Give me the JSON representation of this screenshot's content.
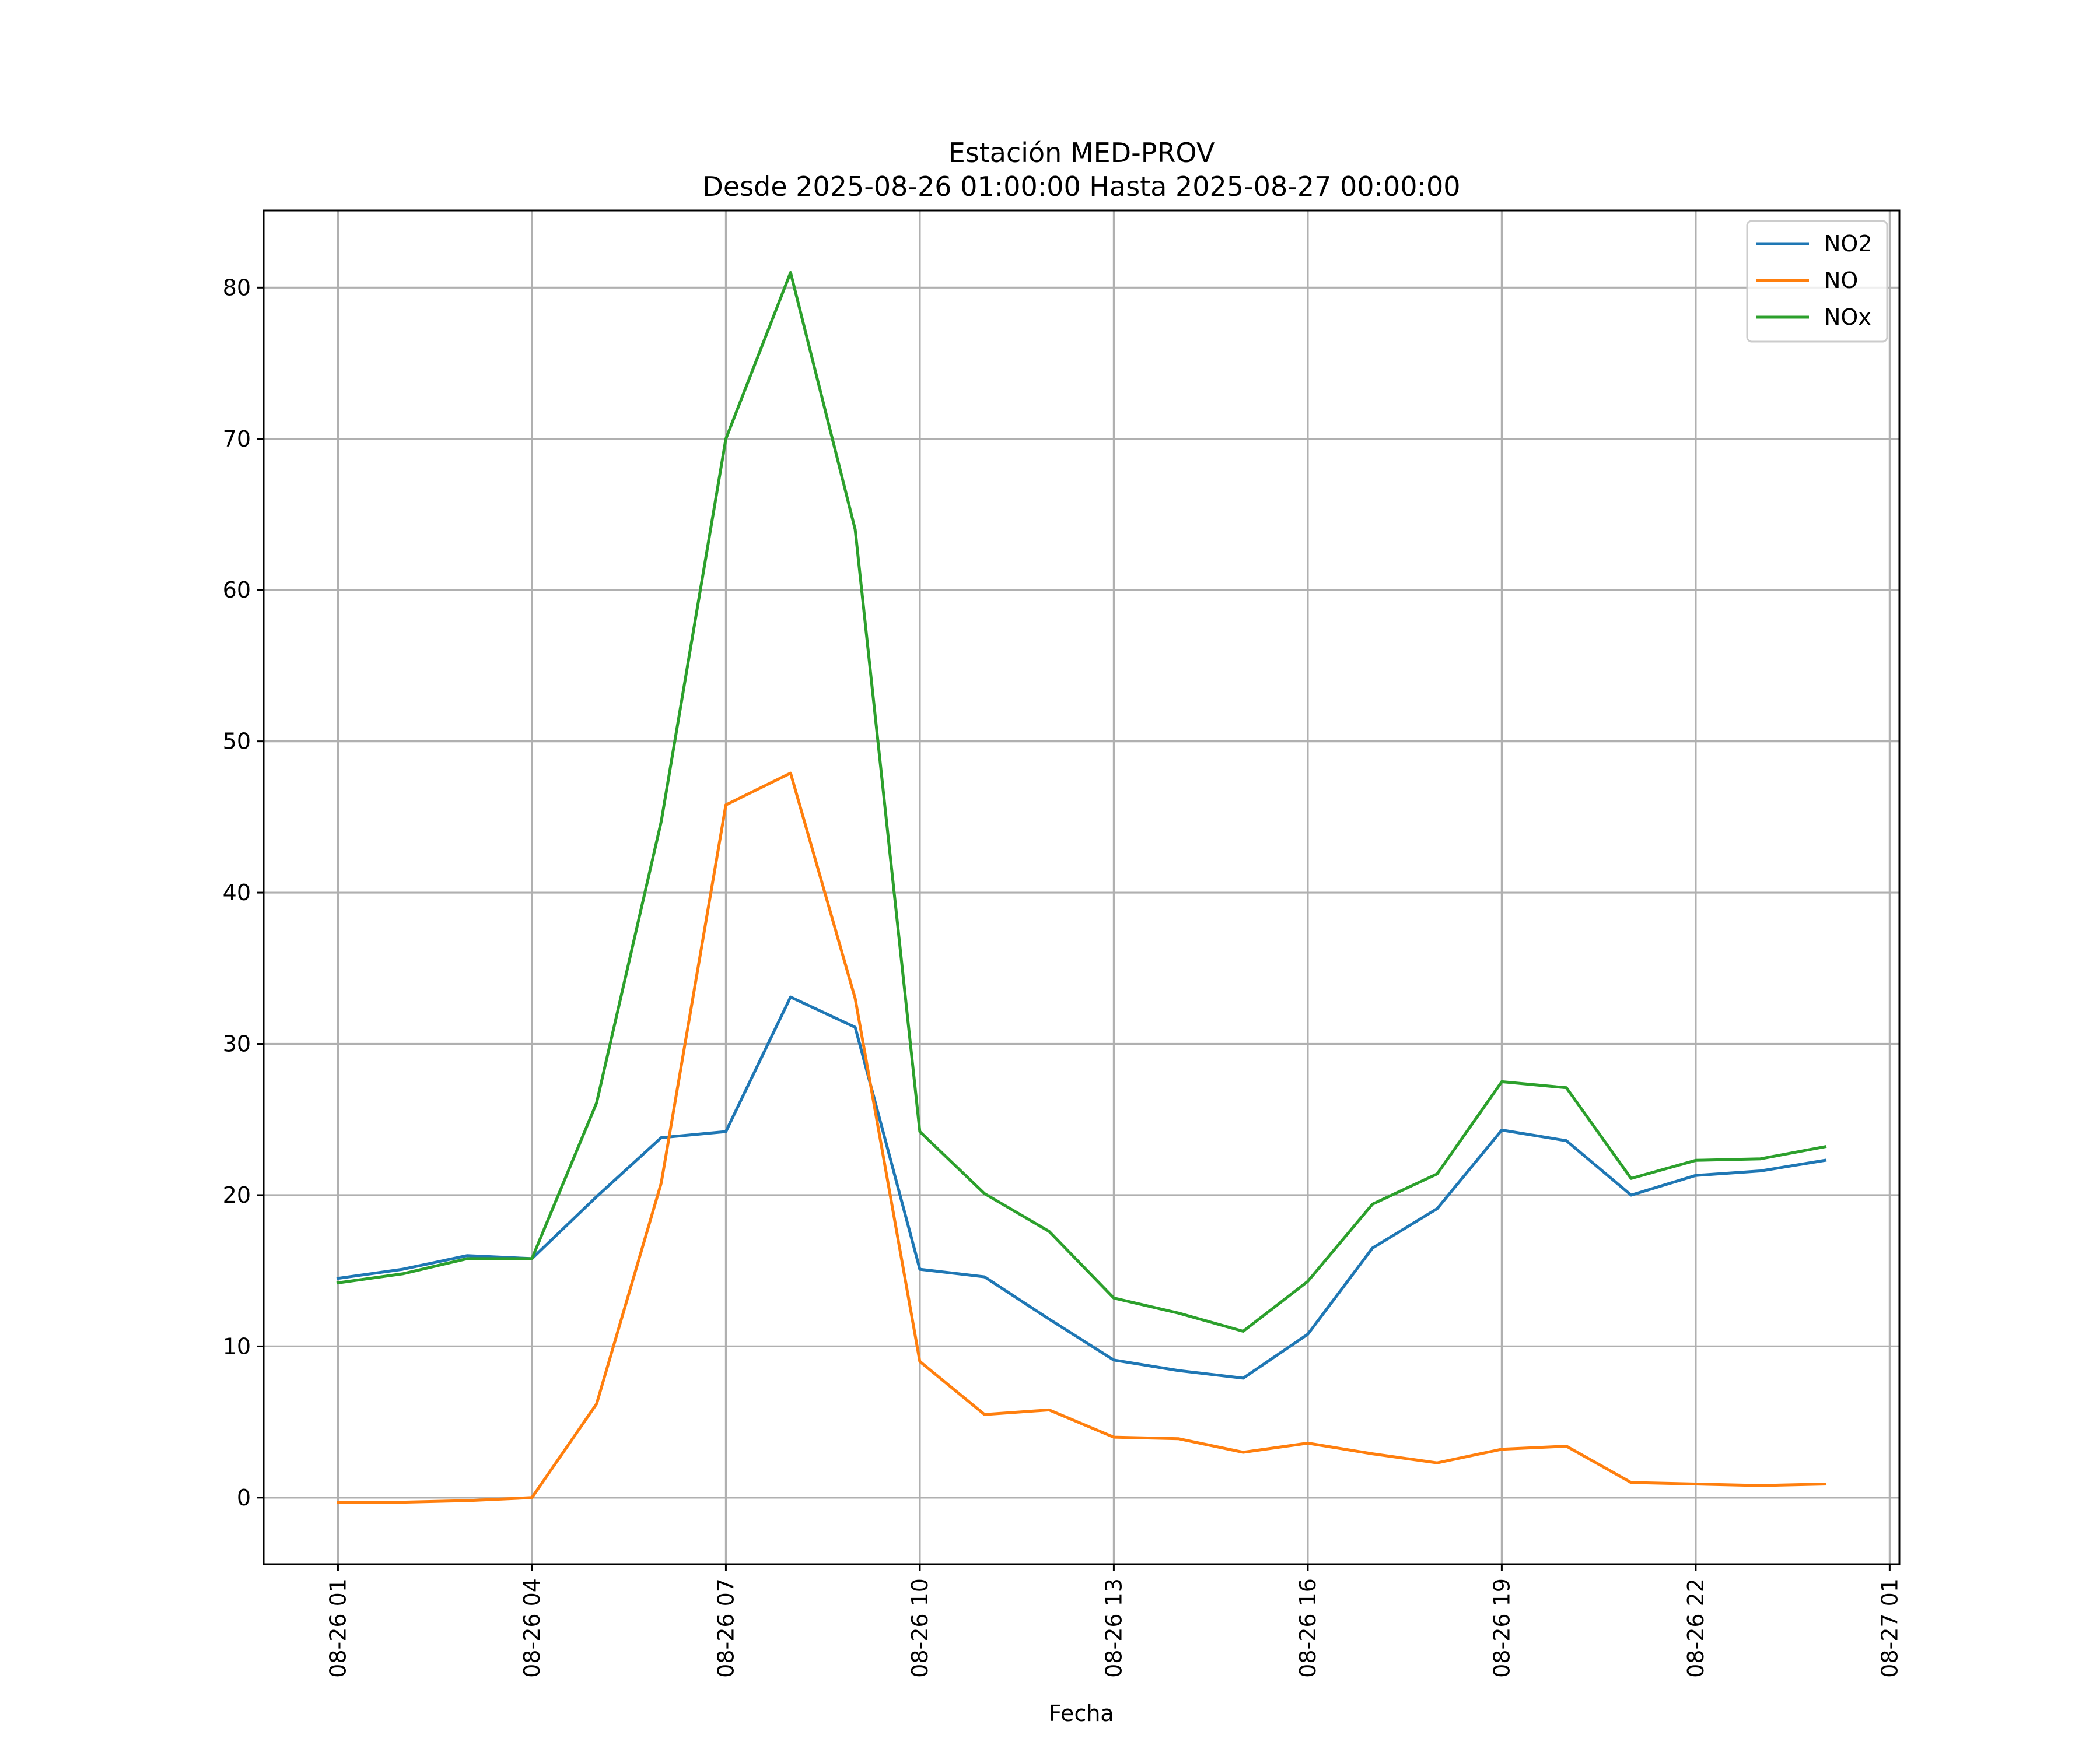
{
  "chart_data": {
    "type": "line",
    "title": "Estación MED-PROV",
    "subtitle": "Desde 2025-08-26 01:00:00 Hasta 2025-08-27 00:00:00",
    "xlabel": "Fecha",
    "ylabel": "",
    "x": [
      "2025-08-26 01:00",
      "2025-08-26 02:00",
      "2025-08-26 03:00",
      "2025-08-26 04:00",
      "2025-08-26 05:00",
      "2025-08-26 06:00",
      "2025-08-26 07:00",
      "2025-08-26 08:00",
      "2025-08-26 09:00",
      "2025-08-26 10:00",
      "2025-08-26 11:00",
      "2025-08-26 12:00",
      "2025-08-26 13:00",
      "2025-08-26 14:00",
      "2025-08-26 15:00",
      "2025-08-26 16:00",
      "2025-08-26 17:00",
      "2025-08-26 18:00",
      "2025-08-26 19:00",
      "2025-08-26 20:00",
      "2025-08-26 21:00",
      "2025-08-26 22:00",
      "2025-08-26 23:00",
      "2025-08-27 00:00"
    ],
    "xlim": [
      "2025-08-25 23:51",
      "2025-08-27 01:09"
    ],
    "xticks": [
      "2025-08-26 01:00",
      "2025-08-26 04:00",
      "2025-08-26 07:00",
      "2025-08-26 10:00",
      "2025-08-26 13:00",
      "2025-08-26 16:00",
      "2025-08-26 19:00",
      "2025-08-26 22:00",
      "2025-08-27 01:00"
    ],
    "xtick_labels": [
      "08-26 01",
      "08-26 04",
      "08-26 07",
      "08-26 10",
      "08-26 13",
      "08-26 16",
      "08-26 19",
      "08-26 22",
      "08-27 01"
    ],
    "ylim": [
      -4.4,
      85.1
    ],
    "yticks": [
      0,
      10,
      20,
      30,
      40,
      50,
      60,
      70,
      80
    ],
    "ytick_labels": [
      "0",
      "10",
      "20",
      "30",
      "40",
      "50",
      "60",
      "70",
      "80"
    ],
    "grid": true,
    "legend_position": "top-right",
    "series": [
      {
        "name": "NO2",
        "color": "#1f77b4",
        "values": [
          14.5,
          15.1,
          16.0,
          15.8,
          19.9,
          23.8,
          24.2,
          33.1,
          31.1,
          15.1,
          14.6,
          11.8,
          9.1,
          8.4,
          7.9,
          10.8,
          16.5,
          19.1,
          24.3,
          23.6,
          20.0,
          21.3,
          21.6,
          22.3
        ]
      },
      {
        "name": "NO",
        "color": "#ff7f0e",
        "values": [
          -0.3,
          -0.3,
          -0.2,
          0.0,
          6.2,
          20.8,
          45.8,
          47.9,
          33.0,
          9.0,
          5.5,
          5.8,
          4.0,
          3.9,
          3.0,
          3.6,
          2.9,
          2.3,
          3.2,
          3.4,
          1.0,
          0.9,
          0.8,
          0.9
        ]
      },
      {
        "name": "NOx",
        "color": "#2ca02c",
        "values": [
          14.2,
          14.8,
          15.8,
          15.8,
          26.1,
          44.7,
          70.0,
          81.0,
          64.0,
          24.2,
          20.1,
          17.6,
          13.2,
          12.2,
          11.0,
          14.3,
          19.4,
          21.4,
          27.5,
          27.1,
          21.1,
          22.3,
          22.4,
          23.2
        ]
      }
    ]
  }
}
